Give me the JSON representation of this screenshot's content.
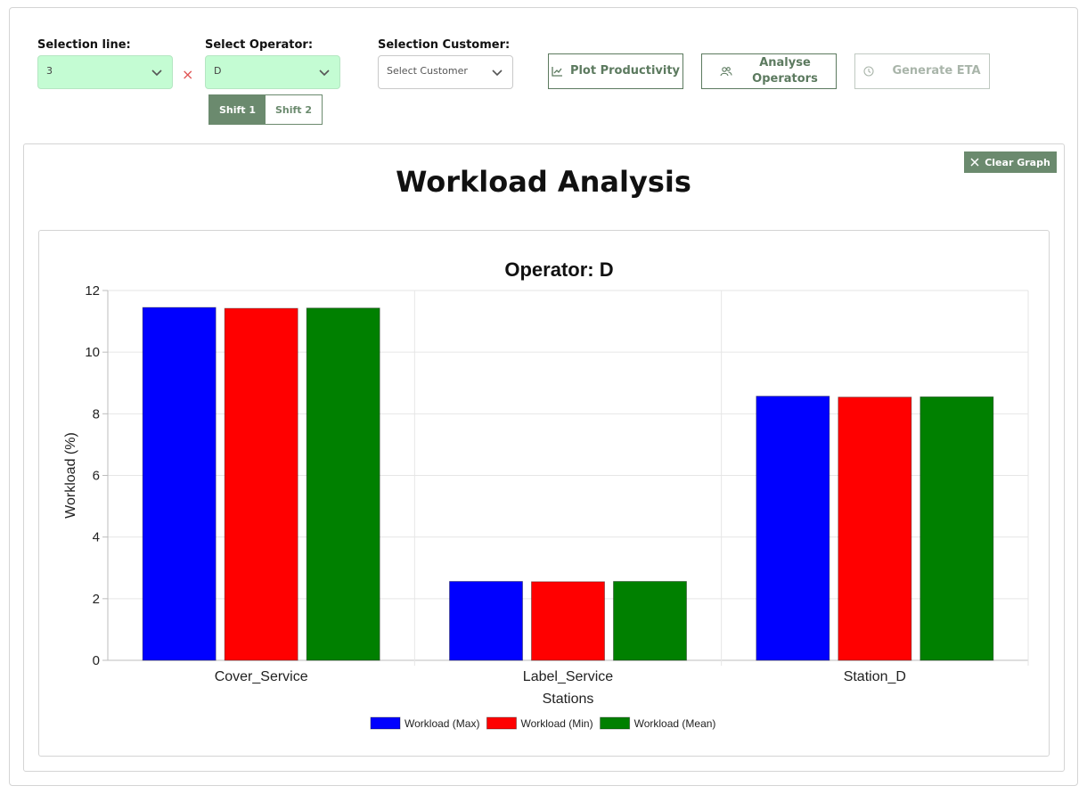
{
  "filters": {
    "line": {
      "label": "Selection line:",
      "value": "3"
    },
    "operator": {
      "label": "Select Operator:",
      "value": "D"
    },
    "customer": {
      "label": "Selection Customer:",
      "placeholder": "Select Customer"
    },
    "clear_symbol": "×"
  },
  "shifts": [
    {
      "label": "Shift 1",
      "active": true
    },
    {
      "label": "Shift 2",
      "active": false
    }
  ],
  "actions": {
    "plot_productivity": "Plot Productivity",
    "analyse_operators_line1": "Analyse",
    "analyse_operators_line2": "Operators",
    "generate_eta": "Generate ETA"
  },
  "graph": {
    "clear_label": "Clear Graph",
    "title": "Workload Analysis"
  },
  "colors": {
    "accent": "#6b8a6e",
    "field_fill": "#c4fcd3"
  },
  "chart_data": {
    "type": "bar",
    "title": "Operator: D",
    "xlabel": "Stations",
    "ylabel": "Workload (%)",
    "ylim": [
      0,
      12
    ],
    "yticks": [
      0,
      2,
      4,
      6,
      8,
      10,
      12
    ],
    "grid": true,
    "legend_position": "bottom",
    "categories": [
      "Cover_Service",
      "Label_Service",
      "Station_D"
    ],
    "series": [
      {
        "name": "Workload (Max)",
        "color": "#0000ff",
        "values": [
          11.45,
          2.56,
          8.57
        ]
      },
      {
        "name": "Workload (Min)",
        "color": "#ff0000",
        "values": [
          11.42,
          2.55,
          8.54
        ]
      },
      {
        "name": "Workload (Mean)",
        "color": "#008000",
        "values": [
          11.43,
          2.56,
          8.55
        ]
      }
    ]
  }
}
